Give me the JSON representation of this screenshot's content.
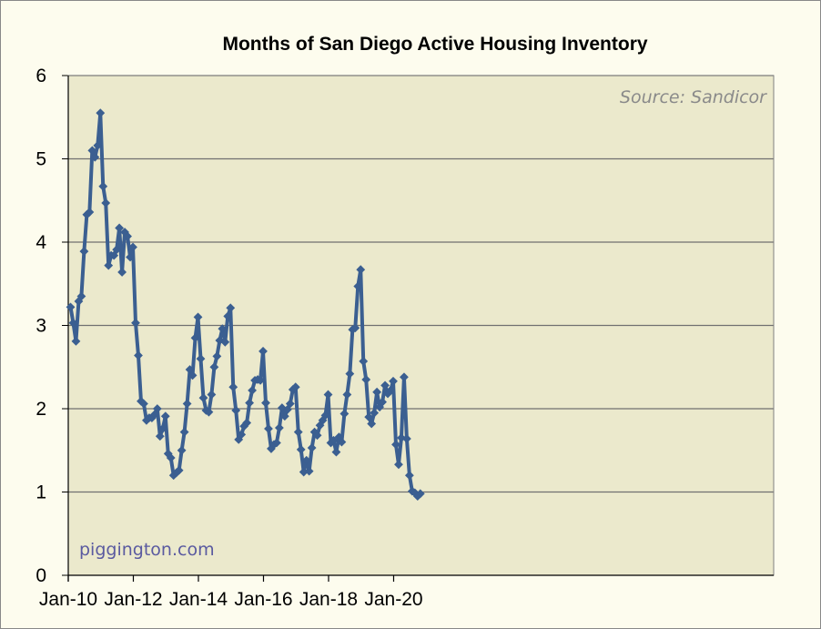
{
  "chart_data": {
    "type": "line",
    "title": "Months of San Diego Active Housing Inventory",
    "source_note": "Source: Sandicor",
    "watermark": "piggington.com",
    "xlabel": "",
    "ylabel": "",
    "ylim": [
      0,
      6
    ],
    "y_ticks": [
      "0",
      "1",
      "2",
      "3",
      "4",
      "5",
      "6"
    ],
    "x_start": "Jan-10",
    "x_end": "Nov-20",
    "x_ticks": [
      "Jan-10",
      "Jan-12",
      "Jan-14",
      "Jan-16",
      "Jan-18",
      "Jan-20"
    ],
    "grid": true,
    "legend": "none",
    "colors": {
      "line": "#3b5f91",
      "plot_bg": "#ebe9cc",
      "grid": "#707070"
    },
    "series": [
      {
        "marker": "diamond",
        "values": [
          3.22,
          3.03,
          2.81,
          3.29,
          3.35,
          3.89,
          4.33,
          4.36,
          5.1,
          5.02,
          5.16,
          5.55,
          4.67,
          4.47,
          3.72,
          3.84,
          3.84,
          3.91,
          4.17,
          3.64,
          4.12,
          4.07,
          3.82,
          3.94,
          3.03,
          2.64,
          2.09,
          2.06,
          1.86,
          1.89,
          1.89,
          1.93,
          2.0,
          1.67,
          1.76,
          1.91,
          1.46,
          1.41,
          1.2,
          1.23,
          1.26,
          1.5,
          1.72,
          2.06,
          2.47,
          2.4,
          2.85,
          3.1,
          2.6,
          2.13,
          1.98,
          1.96,
          2.17,
          2.5,
          2.63,
          2.82,
          2.96,
          2.8,
          3.11,
          3.21,
          2.26,
          1.98,
          1.63,
          1.69,
          1.79,
          1.83,
          2.07,
          2.22,
          2.34,
          2.35,
          2.34,
          2.69,
          2.07,
          1.76,
          1.52,
          1.57,
          1.59,
          1.77,
          2.01,
          1.91,
          1.99,
          2.06,
          2.23,
          2.26,
          1.72,
          1.51,
          1.24,
          1.38,
          1.25,
          1.53,
          1.72,
          1.68,
          1.8,
          1.86,
          1.92,
          2.17,
          1.59,
          1.62,
          1.48,
          1.66,
          1.6,
          1.94,
          2.17,
          2.42,
          2.95,
          2.97,
          3.47,
          3.67,
          2.57,
          2.35,
          1.9,
          1.82,
          1.95,
          2.2,
          2.02,
          2.08,
          2.28,
          2.18,
          2.22,
          2.33,
          1.57,
          1.33,
          1.65,
          2.38,
          1.64,
          1.2,
          1.01,
          0.99,
          0.95,
          0.98
        ]
      }
    ]
  }
}
